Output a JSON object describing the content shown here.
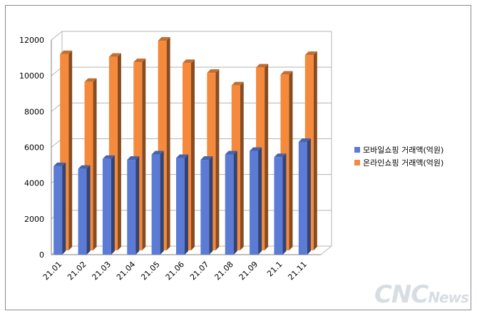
{
  "chart_data": {
    "type": "bar",
    "categories": [
      "21.01",
      "21.02",
      "21.03",
      "21.04",
      "21.05",
      "21.06",
      "21.07",
      "21.08",
      "21.09",
      "21.1",
      "21.11"
    ],
    "series": [
      {
        "name": "모바일쇼핑 거래액(억원)",
        "color": "#5b7bd5",
        "values": [
          4950,
          4800,
          5350,
          5300,
          5600,
          5400,
          5300,
          5600,
          5800,
          5450,
          6300
        ]
      },
      {
        "name": "온라인쇼핑 거래액(억원)",
        "color": "#f58a3c",
        "values": [
          11050,
          9500,
          10900,
          10600,
          11800,
          10550,
          10000,
          9300,
          10300,
          9900,
          11000
        ]
      }
    ],
    "yticks": [
      "0",
      "2000",
      "4000",
      "6000",
      "8000",
      "10000",
      "12000"
    ],
    "ylim": [
      0,
      12000
    ],
    "grid": true,
    "legend": "right",
    "title": "",
    "xlabel": "",
    "ylabel": ""
  },
  "watermark": {
    "big": "CNC",
    "small": "News"
  }
}
